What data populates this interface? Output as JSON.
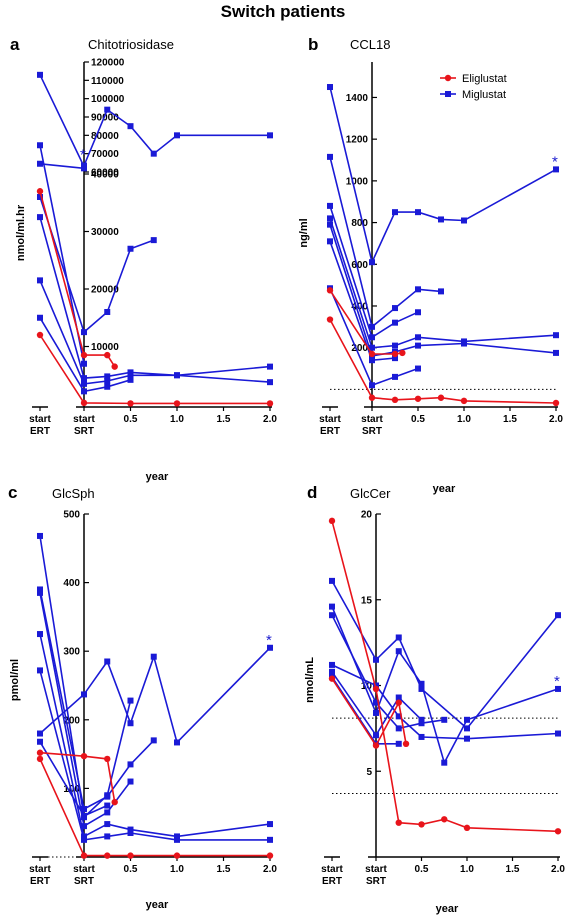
{
  "title": "Switch patients",
  "legend": [
    {
      "name": "Eliglustat",
      "color": "#e8141b",
      "marker": "circle"
    },
    {
      "name": "Miglustat",
      "color": "#1a1ad6",
      "marker": "square"
    }
  ],
  "colors": {
    "eliglustat": "#e8141b",
    "miglustat": "#1a1ad6",
    "axis": "#000000"
  },
  "x_axis": {
    "label": "year",
    "special_ticks": [
      {
        "line1": "start",
        "line2": "ERT"
      },
      {
        "line1": "start",
        "line2": "SRT"
      }
    ],
    "ticks": [
      "0.5",
      "1.0",
      "1.5",
      "2.0"
    ]
  },
  "significance_marker": "*",
  "chart_data": [
    {
      "type": "line",
      "panel_letter": "a",
      "title": "Chitotriosidase",
      "ylabel": "nmol/ml.hr",
      "xlabel": "year",
      "broken_y_axis": true,
      "y_lower_ticks": [
        "10000",
        "20000",
        "30000",
        "40000"
      ],
      "y_upper_ticks": [
        "60000",
        "70000",
        "80000",
        "90000",
        "100000",
        "110000",
        "120000"
      ],
      "ylim_lower": [
        0,
        40000
      ],
      "ylim_upper": [
        60000,
        120000
      ],
      "reference_line": null,
      "significance_index": 1,
      "series": [
        {
          "group": "Miglustat",
          "points": [
            [
              "ERT",
              113000
            ],
            [
              "SRT",
              63000
            ],
            [
              "SRT",
              63500
            ],
            [
              "0.25",
              94000
            ],
            [
              "0.5",
              85000
            ],
            [
              "0.75",
              70000
            ],
            [
              "1.0",
              80000
            ],
            [
              "2.0",
              80000
            ]
          ]
        },
        {
          "group": "Miglustat",
          "points": [
            [
              "ERT",
              64500
            ],
            [
              "SRT",
              62000
            ]
          ]
        },
        {
          "group": "Miglustat",
          "points": [
            [
              "ERT",
              36000
            ],
            [
              "SRT",
              12500
            ],
            [
              "0.25",
              16000
            ],
            [
              "0.5",
              27000
            ],
            [
              "0.75",
              28500
            ]
          ]
        },
        {
          "group": "Miglustat",
          "points": [
            [
              "ERT",
              32500
            ],
            [
              "SRT",
              4500
            ],
            [
              "0.25",
              4800
            ],
            [
              "0.5",
              5500
            ],
            [
              "1.0",
              5000
            ],
            [
              "2.0",
              6500
            ]
          ]
        },
        {
          "group": "Miglustat",
          "points": [
            [
              "ERT",
              21500
            ],
            [
              "SRT",
              3500
            ],
            [
              "0.25",
              4000
            ],
            [
              "0.5",
              5000
            ],
            [
              "1.0",
              5000
            ],
            [
              "2.0",
              3800
            ]
          ]
        },
        {
          "group": "Miglustat",
          "points": [
            [
              "ERT",
              15000
            ],
            [
              "SRT",
              2200
            ],
            [
              "0.25",
              3000
            ],
            [
              "0.5",
              4200
            ]
          ]
        },
        {
          "group": "Miglustat",
          "points": [
            [
              "ERT",
              45000
            ],
            [
              "SRT",
              7000
            ]
          ]
        },
        {
          "group": "Eliglustat",
          "points": [
            [
              "ERT",
              37000
            ],
            [
              "SRT",
              8500
            ],
            [
              "0.25",
              8500
            ],
            [
              "0.33",
              6500
            ]
          ]
        },
        {
          "group": "Eliglustat",
          "points": [
            [
              "ERT",
              12000
            ],
            [
              "SRT",
              200
            ],
            [
              "0.5",
              100
            ],
            [
              "1.0",
              100
            ],
            [
              "2.0",
              100
            ]
          ]
        }
      ]
    },
    {
      "type": "line",
      "panel_letter": "b",
      "title": "CCL18",
      "ylabel": "ng/ml",
      "xlabel": "year",
      "broken_y_axis": false,
      "y_ticks": [
        "200",
        "400",
        "600",
        "800",
        "1000",
        "1200",
        "1400"
      ],
      "ylim": [
        -70,
        1570
      ],
      "reference_line": 0,
      "significance_index": 0,
      "series": [
        {
          "group": "Miglustat",
          "points": [
            [
              "ERT",
              1450
            ],
            [
              "SRT",
              610
            ],
            [
              "0.25",
              850
            ],
            [
              "0.5",
              850
            ],
            [
              "0.75",
              815
            ],
            [
              "1.0",
              810
            ],
            [
              "2.0",
              1055
            ]
          ]
        },
        {
          "group": "Miglustat",
          "points": [
            [
              "ERT",
              1115
            ],
            [
              "SRT",
              300
            ],
            [
              "0.25",
              390
            ],
            [
              "0.5",
              480
            ],
            [
              "0.75",
              470
            ]
          ]
        },
        {
          "group": "Miglustat",
          "points": [
            [
              "ERT",
              880
            ],
            [
              "SRT",
              250
            ],
            [
              "0.25",
              320
            ],
            [
              "0.5",
              370
            ]
          ]
        },
        {
          "group": "Miglustat",
          "points": [
            [
              "ERT",
              820
            ],
            [
              "SRT",
              200
            ],
            [
              "0.25",
              210
            ],
            [
              "0.5",
              250
            ],
            [
              "1.0",
              230
            ],
            [
              "2.0",
              260
            ]
          ]
        },
        {
          "group": "Miglustat",
          "points": [
            [
              "ERT",
              790
            ],
            [
              "SRT",
              160
            ],
            [
              "0.25",
              180
            ],
            [
              "0.5",
              210
            ],
            [
              "1.0",
              220
            ],
            [
              "2.0",
              175
            ]
          ]
        },
        {
          "group": "Miglustat",
          "points": [
            [
              "ERT",
              710
            ],
            [
              "SRT",
              140
            ],
            [
              "0.25",
              150
            ]
          ]
        },
        {
          "group": "Miglustat",
          "points": [
            [
              "ERT",
              485
            ],
            [
              "SRT",
              20
            ],
            [
              "0.25",
              60
            ],
            [
              "0.5",
              100
            ]
          ]
        },
        {
          "group": "Eliglustat",
          "points": [
            [
              "ERT",
              475
            ],
            [
              "SRT",
              170
            ],
            [
              "0.25",
              170
            ],
            [
              "0.33",
              175
            ]
          ]
        },
        {
          "group": "Eliglustat",
          "points": [
            [
              "ERT",
              335
            ],
            [
              "SRT",
              -40
            ],
            [
              "0.25",
              -50
            ],
            [
              "0.5",
              -45
            ],
            [
              "0.75",
              -40
            ],
            [
              "1.0",
              -55
            ],
            [
              "2.0",
              -65
            ]
          ]
        }
      ]
    },
    {
      "type": "line",
      "panel_letter": "c",
      "title": "GlcSph",
      "ylabel": "pmol/ml",
      "xlabel": "year",
      "broken_y_axis": false,
      "y_ticks": [
        "100",
        "200",
        "300",
        "400",
        "500"
      ],
      "ylim": [
        0,
        500
      ],
      "reference_line": 0,
      "significance_index": 0,
      "series": [
        {
          "group": "Miglustat",
          "points": [
            [
              "ERT",
              180
            ],
            [
              "SRT",
              237
            ],
            [
              "0.25",
              285
            ],
            [
              "0.5",
              195
            ],
            [
              "0.75",
              292
            ],
            [
              "1.0",
              167
            ],
            [
              "2.0",
              305
            ]
          ]
        },
        {
          "group": "Miglustat",
          "points": [
            [
              "ERT",
              468
            ],
            [
              "SRT",
              58
            ],
            [
              "0.25",
              90
            ],
            [
              "0.5",
              228
            ]
          ]
        },
        {
          "group": "Miglustat",
          "points": [
            [
              "ERT",
              390
            ],
            [
              "SRT",
              70
            ],
            [
              "0.25",
              88
            ],
            [
              "0.5",
              135
            ],
            [
              "0.75",
              170
            ]
          ]
        },
        {
          "group": "Miglustat",
          "points": [
            [
              "ERT",
              385
            ],
            [
              "SRT",
              45
            ],
            [
              "0.25",
              65
            ],
            [
              "0.5",
              110
            ]
          ]
        },
        {
          "group": "Miglustat",
          "points": [
            [
              "ERT",
              325
            ],
            [
              "SRT",
              30
            ],
            [
              "0.25",
              48
            ],
            [
              "0.5",
              40
            ],
            [
              "1.0",
              30
            ],
            [
              "2.0",
              48
            ]
          ]
        },
        {
          "group": "Miglustat",
          "points": [
            [
              "ERT",
              272
            ],
            [
              "SRT",
              25
            ],
            [
              "0.25",
              30
            ],
            [
              "0.5",
              35
            ],
            [
              "1.0",
              25
            ],
            [
              "2.0",
              25
            ]
          ]
        },
        {
          "group": "Miglustat",
          "points": [
            [
              "ERT",
              168
            ],
            [
              "SRT",
              60
            ],
            [
              "0.25",
              75
            ]
          ]
        },
        {
          "group": "Eliglustat",
          "points": [
            [
              "ERT",
              152
            ],
            [
              "SRT",
              147
            ],
            [
              "0.25",
              143
            ],
            [
              "0.33",
              80
            ]
          ]
        },
        {
          "group": "Eliglustat",
          "points": [
            [
              "ERT",
              143
            ],
            [
              "SRT",
              2
            ],
            [
              "0.25",
              2
            ],
            [
              "0.5",
              2
            ],
            [
              "1.0",
              2
            ],
            [
              "2.0",
              2
            ]
          ]
        }
      ]
    },
    {
      "type": "line",
      "panel_letter": "d",
      "title": "GlcCer",
      "ylabel": "nmol/mL",
      "xlabel": "year",
      "broken_y_axis": false,
      "y_ticks": [
        "5",
        "10",
        "15",
        "20"
      ],
      "ylim": [
        0,
        20
      ],
      "reference_lines": [
        3.7,
        8.1
      ],
      "significance_index": 1,
      "series": [
        {
          "group": "Miglustat",
          "points": [
            [
              "ERT",
              16.1
            ],
            [
              "SRT",
              11.5
            ],
            [
              "0.25",
              12.8
            ],
            [
              "0.5",
              9.8
            ],
            [
              "1.0",
              7.5
            ],
            [
              "2.0",
              14.1
            ]
          ]
        },
        {
          "group": "Miglustat",
          "points": [
            [
              "ERT",
              14.6
            ],
            [
              "SRT",
              8.4
            ],
            [
              "0.25",
              12.0
            ],
            [
              "0.5",
              10.1
            ],
            [
              "0.75",
              5.5
            ],
            [
              "1.0",
              8.0
            ],
            [
              "2.0",
              9.8
            ]
          ]
        },
        {
          "group": "Miglustat",
          "points": [
            [
              "ERT",
              14.1
            ],
            [
              "SRT",
              9.0
            ],
            [
              "0.25",
              7.5
            ],
            [
              "0.5",
              7.8
            ],
            [
              "0.75",
              8.0
            ]
          ]
        },
        {
          "group": "Miglustat",
          "points": [
            [
              "ERT",
              11.2
            ],
            [
              "SRT",
              10.0
            ],
            [
              "0.25",
              8.2
            ],
            [
              "0.5",
              7.0
            ],
            [
              "1.0",
              6.9
            ],
            [
              "2.0",
              7.2
            ]
          ]
        },
        {
          "group": "Miglustat",
          "points": [
            [
              "ERT",
              10.8
            ],
            [
              "SRT",
              7.1
            ],
            [
              "0.25",
              9.3
            ],
            [
              "0.5",
              8.0
            ]
          ]
        },
        {
          "group": "Miglustat",
          "points": [
            [
              "ERT",
              10.5
            ],
            [
              "SRT",
              6.6
            ],
            [
              "0.25",
              6.6
            ]
          ]
        },
        {
          "group": "Eliglustat",
          "points": [
            [
              "ERT",
              19.6
            ],
            [
              "SRT",
              9.8
            ],
            [
              "0.25",
              2.0
            ],
            [
              "0.5",
              1.9
            ],
            [
              "0.75",
              2.2
            ],
            [
              "1.0",
              1.7
            ],
            [
              "2.0",
              1.5
            ]
          ]
        },
        {
          "group": "Eliglustat",
          "points": [
            [
              "ERT",
              10.4
            ],
            [
              "SRT",
              6.5
            ],
            [
              "0.25",
              9.0
            ],
            [
              "0.33",
              6.6
            ]
          ]
        }
      ]
    }
  ]
}
